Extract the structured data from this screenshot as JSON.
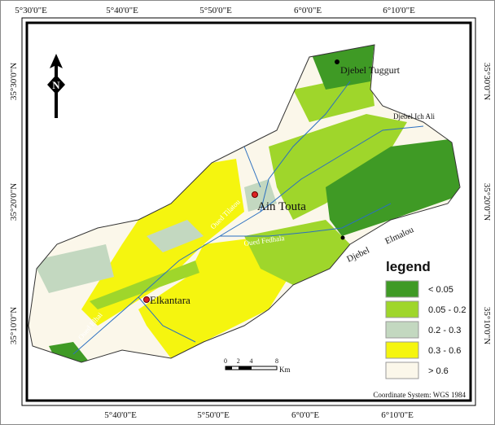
{
  "frame": {
    "top": [
      "5°30'0\"E",
      "5°40'0\"E",
      "5°50'0\"E",
      "6°0'0\"E",
      "6°10'0\"E"
    ],
    "bottom": [
      "5°40'0\"E",
      "5°50'0\"E",
      "6°0'0\"E",
      "6°10'0\"E"
    ],
    "left": [
      "35°30'0\"N",
      "35°20'0\"N",
      "35°10'0\"N"
    ],
    "right": [
      "35°30'0\"N",
      "35°20'0\"N",
      "35°10'0\"N"
    ]
  },
  "places": [
    "Djebel Tuggurt",
    "Djebel Ich Ali",
    "Ain Touta",
    "Djebel",
    "Elmalou",
    "Oued Fedhala",
    "Oued Tilatou",
    "Elkantara",
    "Oued Elhai"
  ],
  "north": "N",
  "legend": {
    "title": "legend",
    "items": [
      {
        "label": "< 0.05",
        "color": "#3f9a25"
      },
      {
        "label": "0.05 - 0.2",
        "color": "#9fd62b"
      },
      {
        "label": "0.2 - 0.3",
        "color": "#c3d8c0"
      },
      {
        "label": "0.3 - 0.6",
        "color": "#f5f50f"
      },
      {
        "label": "> 0.6",
        "color": "#fbf7ea"
      }
    ]
  },
  "scale": {
    "ticks": [
      0,
      2,
      4,
      8
    ],
    "unit": "Km"
  },
  "footer": "Coordinate System: WGS 1984"
}
